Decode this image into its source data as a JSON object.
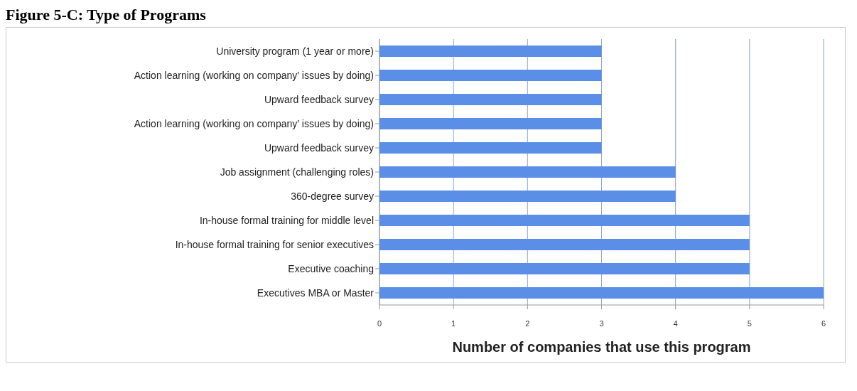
{
  "chart_data": {
    "type": "bar",
    "orientation": "horizontal",
    "title": "Figure 5-C: Type of Programs",
    "xlabel": "Number of companies that use this program",
    "categories": [
      "University program (1 year or more)",
      "Action learning (working on company’ issues by doing)",
      "Upward feedback survey",
      "Action learning (working on company’ issues by doing)",
      "Upward feedback survey",
      "Job assignment (challenging roles)",
      "360-degree survey",
      "In-house formal training  for middle level",
      "In-house formal training for senior executives",
      "Executive coaching",
      "Executives MBA or Master"
    ],
    "values": [
      3,
      3,
      3,
      3,
      3,
      4,
      4,
      5,
      5,
      5,
      6
    ],
    "color": "#5b8ee6",
    "xlim": [
      0,
      6
    ],
    "xticks": [
      0,
      1,
      2,
      3,
      4,
      5,
      6
    ],
    "grid": "x",
    "legend": false
  }
}
